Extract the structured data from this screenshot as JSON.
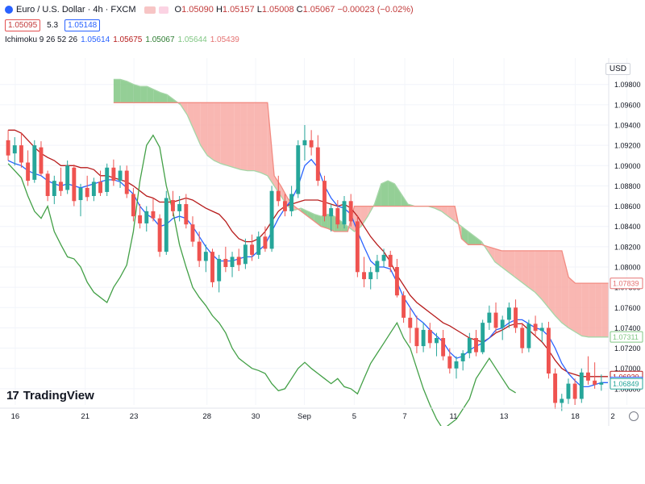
{
  "header": {
    "title": "Euro / U.S. Dollar · 4h · FXCM",
    "ohlc": {
      "o_label": "O",
      "o": "1.05090",
      "h_label": "H",
      "h": "1.05157",
      "l_label": "L",
      "l": "1.05008",
      "c_label": "C",
      "c": "1.05067",
      "change": "−0.00023 (−0.02%)"
    },
    "sell_price": "1.05095",
    "spread": "5.3",
    "buy_price": "1.05148"
  },
  "indicator": {
    "name": "Ichimoku 9 26 52 26",
    "values": [
      "1.05614",
      "1.05675",
      "1.05067",
      "1.05644",
      "1.05439"
    ]
  },
  "currency_button": "USD",
  "brand": "TradingView",
  "colors": {
    "conversion": "#2962ff",
    "base": "#b71c1c",
    "lagging": "#43a047",
    "bull": "#26a69a",
    "bear": "#ef5350",
    "cloud_bear": "#f8aaa5",
    "cloud_bull": "#81c784"
  },
  "chart_data": {
    "type": "candlestick",
    "y_axis_ticks": [
      "1.09800",
      "1.09600",
      "1.09400",
      "1.09200",
      "1.09000",
      "1.08800",
      "1.08600",
      "1.08400",
      "1.08200",
      "1.08000",
      "1.07800",
      "1.07600",
      "1.07400",
      "1.07200",
      "1.07000",
      "1.06800"
    ],
    "ylim": [
      1.0664,
      1.1006
    ],
    "x_ticks": [
      "16",
      "21",
      "23",
      "28",
      "30",
      "Sep",
      "5",
      "7",
      "11",
      "13",
      "18",
      "2"
    ],
    "x_tick_pos": [
      0.025,
      0.14,
      0.22,
      0.34,
      0.42,
      0.5,
      0.582,
      0.665,
      0.745,
      0.828,
      0.945,
      1.03
    ],
    "price_labels": [
      {
        "value": "1.07839",
        "price": 1.07839,
        "color": "#e57373"
      },
      {
        "value": "1.07311",
        "price": 1.07311,
        "color": "#81c784"
      },
      {
        "value": "1.06920",
        "price": 1.0692,
        "color": "#b71c1c"
      },
      {
        "value": "1.06862",
        "price": 1.06862,
        "color": "#2962ff"
      },
      {
        "value": "1.06849",
        "price": 1.06849,
        "color": "#26a69a"
      }
    ],
    "candles": [
      [
        1.0925,
        1.0935,
        1.0905,
        1.091
      ],
      [
        1.0912,
        1.0928,
        1.09,
        1.092
      ],
      [
        1.092,
        1.0932,
        1.0898,
        1.0903
      ],
      [
        1.0903,
        1.0915,
        1.088,
        1.0885
      ],
      [
        1.0886,
        1.0925,
        1.0883,
        1.092
      ],
      [
        1.0918,
        1.0924,
        1.089,
        1.0892
      ],
      [
        1.0892,
        1.0895,
        1.0865,
        1.087
      ],
      [
        1.087,
        1.089,
        1.0862,
        1.0885
      ],
      [
        1.0884,
        1.0898,
        1.087,
        1.0875
      ],
      [
        1.0876,
        1.0905,
        1.0872,
        1.09
      ],
      [
        1.0898,
        1.0901,
        1.086,
        1.0865
      ],
      [
        1.0866,
        1.0882,
        1.085,
        1.0878
      ],
      [
        1.0878,
        1.089,
        1.0865,
        1.0869
      ],
      [
        1.087,
        1.0888,
        1.0865,
        1.0884
      ],
      [
        1.0884,
        1.0895,
        1.087,
        1.0873
      ],
      [
        1.0874,
        1.0902,
        1.087,
        1.0898
      ],
      [
        1.0898,
        1.0906,
        1.088,
        1.0885
      ],
      [
        1.0885,
        1.09,
        1.0878,
        1.0895
      ],
      [
        1.0895,
        1.09,
        1.0868,
        1.0872
      ],
      [
        1.0872,
        1.0878,
        1.0845,
        1.085
      ],
      [
        1.0851,
        1.0862,
        1.0838,
        1.0843
      ],
      [
        1.0843,
        1.086,
        1.0835,
        1.0855
      ],
      [
        1.0855,
        1.0868,
        1.0845,
        1.0848
      ],
      [
        1.0848,
        1.0852,
        1.081,
        1.0815
      ],
      [
        1.0815,
        1.0875,
        1.0812,
        1.0868
      ],
      [
        1.0866,
        1.0875,
        1.085,
        1.0855
      ],
      [
        1.0855,
        1.087,
        1.0845,
        1.0862
      ],
      [
        1.0862,
        1.0872,
        1.0838,
        1.0842
      ],
      [
        1.0842,
        1.085,
        1.082,
        1.0825
      ],
      [
        1.0825,
        1.0835,
        1.08,
        1.0806
      ],
      [
        1.0806,
        1.0822,
        1.0795,
        1.0815
      ],
      [
        1.0815,
        1.0818,
        1.078,
        1.0785
      ],
      [
        1.0786,
        1.0812,
        1.0775,
        1.0808
      ],
      [
        1.0808,
        1.082,
        1.0795,
        1.08
      ],
      [
        1.08,
        1.0815,
        1.079,
        1.081
      ],
      [
        1.081,
        1.0818,
        1.0796,
        1.0802
      ],
      [
        1.0803,
        1.0828,
        1.0798,
        1.0822
      ],
      [
        1.0822,
        1.0832,
        1.0806,
        1.0812
      ],
      [
        1.0812,
        1.0835,
        1.0808,
        1.083
      ],
      [
        1.083,
        1.084,
        1.0815,
        1.0818
      ],
      [
        1.0818,
        1.088,
        1.0815,
        1.0875
      ],
      [
        1.0875,
        1.089,
        1.086,
        1.0865
      ],
      [
        1.0865,
        1.0872,
        1.085,
        1.0855
      ],
      [
        1.0855,
        1.088,
        1.085,
        1.0872
      ],
      [
        1.0872,
        1.0925,
        1.0868,
        1.092
      ],
      [
        1.092,
        1.094,
        1.0905,
        1.0925
      ],
      [
        1.0925,
        1.0935,
        1.091,
        1.0918
      ],
      [
        1.0918,
        1.093,
        1.088,
        1.0885
      ],
      [
        1.0885,
        1.089,
        1.0845,
        1.085
      ],
      [
        1.085,
        1.0862,
        1.0835,
        1.0858
      ],
      [
        1.0858,
        1.0866,
        1.0838,
        1.0842
      ],
      [
        1.0842,
        1.087,
        1.0838,
        1.0865
      ],
      [
        1.0865,
        1.0872,
        1.084,
        1.0845
      ],
      [
        1.0845,
        1.085,
        1.079,
        1.0795
      ],
      [
        1.0795,
        1.081,
        1.078,
        1.0788
      ],
      [
        1.0788,
        1.08,
        1.0778,
        1.0795
      ],
      [
        1.0795,
        1.0812,
        1.0788,
        1.0806
      ],
      [
        1.0806,
        1.0818,
        1.08,
        1.0812
      ],
      [
        1.0812,
        1.0816,
        1.0795,
        1.08
      ],
      [
        1.08,
        1.0808,
        1.077,
        1.0772
      ],
      [
        1.0772,
        1.0776,
        1.0745,
        1.075
      ],
      [
        1.075,
        1.076,
        1.0725,
        1.074
      ],
      [
        1.074,
        1.0752,
        1.0715,
        1.0722
      ],
      [
        1.0722,
        1.0745,
        1.0716,
        1.0738
      ],
      [
        1.0738,
        1.0745,
        1.072,
        1.0725
      ],
      [
        1.0725,
        1.0735,
        1.0712,
        1.073
      ],
      [
        1.073,
        1.0738,
        1.0708,
        1.0712
      ],
      [
        1.0712,
        1.072,
        1.0695,
        1.07
      ],
      [
        1.07,
        1.0712,
        1.069,
        1.0707
      ],
      [
        1.0707,
        1.0718,
        1.0698,
        1.0715
      ],
      [
        1.0715,
        1.0735,
        1.071,
        1.073
      ],
      [
        1.073,
        1.0738,
        1.0712,
        1.0716
      ],
      [
        1.0716,
        1.0748,
        1.0714,
        1.0745
      ],
      [
        1.0745,
        1.0762,
        1.0738,
        1.0755
      ],
      [
        1.0755,
        1.0765,
        1.0735,
        1.074
      ],
      [
        1.074,
        1.0752,
        1.0728,
        1.0748
      ],
      [
        1.0748,
        1.0765,
        1.074,
        1.076
      ],
      [
        1.076,
        1.0768,
        1.0735,
        1.074
      ],
      [
        1.074,
        1.0745,
        1.0715,
        1.072
      ],
      [
        1.072,
        1.0748,
        1.0716,
        1.0744
      ],
      [
        1.0744,
        1.0752,
        1.0732,
        1.0737
      ],
      [
        1.0737,
        1.0745,
        1.0726,
        1.074
      ],
      [
        1.074,
        1.0746,
        1.069,
        1.0695
      ],
      [
        1.0695,
        1.07,
        1.066,
        1.0666
      ],
      [
        1.0666,
        1.0675,
        1.0658,
        1.067
      ],
      [
        1.067,
        1.069,
        1.0665,
        1.0685
      ],
      [
        1.0685,
        1.069,
        1.0664,
        1.067
      ],
      [
        1.067,
        1.07,
        1.0666,
        1.0696
      ],
      [
        1.0696,
        1.0712,
        1.0684,
        1.0688
      ],
      [
        1.0688,
        1.0706,
        1.068,
        1.0684
      ],
      [
        1.0684,
        1.0694,
        1.0678,
        1.0686
      ]
    ],
    "conversion_line": [
      1.0905,
      1.0902,
      1.09,
      1.0895,
      1.0892,
      1.089,
      1.0885,
      1.0882,
      1.088,
      1.0882,
      1.088,
      1.0878,
      1.088,
      1.0882,
      1.0884,
      1.0886,
      1.0886,
      1.0884,
      1.0878,
      1.0872,
      1.086,
      1.0852,
      1.0848,
      1.084,
      1.0842,
      1.0848,
      1.085,
      1.0848,
      1.084,
      1.083,
      1.082,
      1.0812,
      1.0806,
      1.0806,
      1.0806,
      1.0808,
      1.081,
      1.081,
      1.0816,
      1.0822,
      1.0835,
      1.0848,
      1.0858,
      1.0866,
      1.088,
      1.09,
      1.0906,
      1.0898,
      1.088,
      1.0868,
      1.086,
      1.0858,
      1.0852,
      1.0835,
      1.082,
      1.0806,
      1.08,
      1.08,
      1.0798,
      1.0785,
      1.077,
      1.076,
      1.075,
      1.0745,
      1.0738,
      1.0732,
      1.0726,
      1.0716,
      1.071,
      1.0712,
      1.0718,
      1.0722,
      1.0725,
      1.073,
      1.0738,
      1.074,
      1.0745,
      1.0748,
      1.0748,
      1.0744,
      1.074,
      1.0738,
      1.0732,
      1.072,
      1.0705,
      1.0695,
      1.0688,
      1.0682,
      1.0682,
      1.0684,
      1.0686,
      1.0686
    ],
    "base_line": [
      1.0935,
      1.0935,
      1.0932,
      1.0925,
      1.0918,
      1.0912,
      1.0908,
      1.0905,
      1.09,
      1.09,
      1.09,
      1.0898,
      1.0898,
      1.0896,
      1.089,
      1.089,
      1.0888,
      1.0886,
      1.0884,
      1.088,
      1.0875,
      1.087,
      1.0868,
      1.0864,
      1.0864,
      1.0864,
      1.0866,
      1.0868,
      1.0866,
      1.0862,
      1.0858,
      1.0855,
      1.0852,
      1.0845,
      1.0835,
      1.0828,
      1.0825,
      1.0825,
      1.0828,
      1.0835,
      1.0845,
      1.0855,
      1.086,
      1.0862,
      1.0864,
      1.0866,
      1.0866,
      1.0866,
      1.0864,
      1.0862,
      1.086,
      1.0862,
      1.0858,
      1.085,
      1.084,
      1.083,
      1.0822,
      1.0815,
      1.0805,
      1.0792,
      1.0782,
      1.0772,
      1.0765,
      1.076,
      1.0755,
      1.075,
      1.0745,
      1.0742,
      1.0738,
      1.0734,
      1.073,
      1.0728,
      1.0726,
      1.073,
      1.0735,
      1.0738,
      1.0742,
      1.0744,
      1.0744,
      1.0738,
      1.0732,
      1.0726,
      1.0718,
      1.0708,
      1.07,
      1.0696,
      1.0694,
      1.0692,
      1.0692,
      1.0692,
      1.0692,
      1.0692
    ],
    "lagging_line": [
      1.0902,
      1.0895,
      1.0888,
      1.087,
      1.0855,
      1.0848,
      1.086,
      1.0835,
      1.0822,
      1.081,
      1.0808,
      1.08,
      1.0785,
      1.0775,
      1.077,
      1.0765,
      1.078,
      1.079,
      1.0802,
      1.0835,
      1.0885,
      1.092,
      1.093,
      1.0918,
      1.088,
      1.0855,
      1.0822,
      1.08,
      1.078,
      1.077,
      1.0762,
      1.0752,
      1.0745,
      1.0735,
      1.072,
      1.071,
      1.0705,
      1.07,
      1.0698,
      1.0695,
      1.0685,
      1.0678,
      1.068,
      1.069,
      1.07,
      1.0706,
      1.07,
      1.0695,
      1.069,
      1.0685,
      1.069,
      1.0682,
      1.068,
      1.0675,
      1.069,
      1.0705,
      1.0715,
      1.0725,
      1.0735,
      1.0745,
      1.073,
      1.072,
      1.07,
      1.068,
      1.0664,
      1.065,
      1.064,
      1.0645,
      1.065,
      1.066,
      1.067,
      1.069,
      1.07,
      1.071,
      1.07,
      1.069,
      1.068,
      1.0676
    ],
    "span_a": [
      1.0985,
      1.0985,
      1.0983,
      1.098,
      1.0978,
      1.0978,
      1.0975,
      1.0972,
      1.097,
      1.0965,
      1.096,
      1.095,
      1.0935,
      1.092,
      1.091,
      1.0905,
      1.0902,
      1.09,
      1.0898,
      1.0896,
      1.0895,
      1.0895,
      1.0893,
      1.089,
      1.088,
      1.087,
      1.086,
      1.0856,
      1.0858,
      1.0855,
      1.0852,
      1.085,
      1.0852,
      1.085,
      1.0845,
      1.084,
      1.0835,
      1.084,
      1.085,
      1.0862,
      1.0882,
      1.0885,
      1.0882,
      1.0872,
      1.0862,
      1.086,
      1.086,
      1.086,
      1.0858,
      1.0855,
      1.085,
      1.0845,
      1.084,
      1.0835,
      1.083,
      1.0825,
      1.0815,
      1.0805,
      1.08,
      1.0795,
      1.079,
      1.0785,
      1.078,
      1.0775,
      1.0768,
      1.076,
      1.0752,
      1.0745,
      1.074,
      1.0736,
      1.0732,
      1.0731,
      1.0731,
      1.0731,
      1.0731
    ],
    "span_b": [
      1.0962,
      1.0962,
      1.0962,
      1.0962,
      1.0962,
      1.0962,
      1.0962,
      1.0962,
      1.0962,
      1.0962,
      1.0962,
      1.0962,
      1.0962,
      1.0962,
      1.0962,
      1.0962,
      1.0962,
      1.0962,
      1.0962,
      1.0962,
      1.0962,
      1.0962,
      1.0962,
      1.0962,
      1.089,
      1.088,
      1.0868,
      1.086,
      1.0855,
      1.085,
      1.0845,
      1.084,
      1.0838,
      1.0835,
      1.0835,
      1.0835,
      1.086,
      1.086,
      1.086,
      1.086,
      1.086,
      1.086,
      1.086,
      1.086,
      1.086,
      1.086,
      1.086,
      1.086,
      1.086,
      1.086,
      1.086,
      1.086,
      1.0828,
      1.0822,
      1.0822,
      1.0822,
      1.082,
      1.0818,
      1.0816,
      1.0816,
      1.0816,
      1.0816,
      1.0816,
      1.0816,
      1.0816,
      1.0816,
      1.0816,
      1.0816,
      1.079,
      1.0784,
      1.0784,
      1.0784,
      1.0784,
      1.0784,
      1.0784
    ]
  }
}
